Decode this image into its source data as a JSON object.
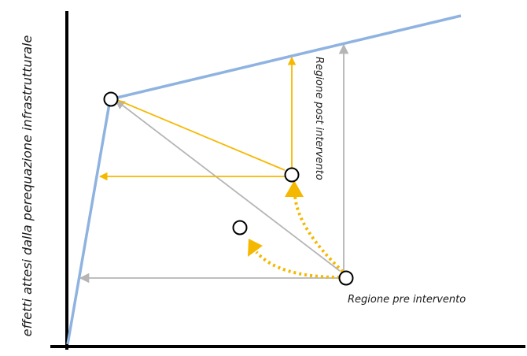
{
  "labels": {
    "y_axis": "effetti attesi dalla perequazione infrastrutturale",
    "post_region": "Regione post intervento",
    "pre_region": "Regione pre intervento"
  },
  "colors": {
    "axis": "#000000",
    "frontier": "#8fb3e0",
    "gray_arrows": "#b5b5b5",
    "yellow_arrows": "#f5b800"
  }
}
